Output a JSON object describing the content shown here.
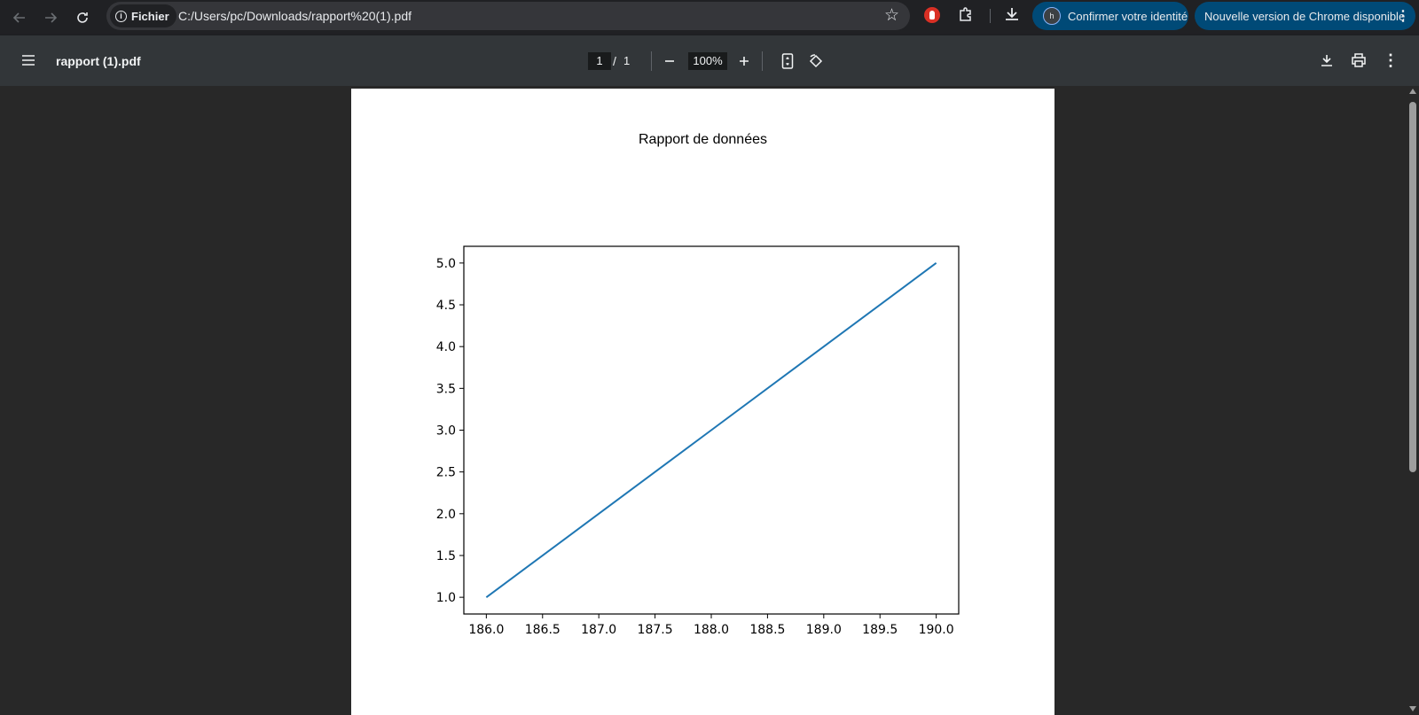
{
  "browser": {
    "site_chip_label": "Fichier",
    "url": "C:/Users/pc/Downloads/rapport%20(1).pdf",
    "identity_label": "Confirmer votre identité",
    "identity_avatar": "h",
    "update_label": "Nouvelle version de Chrome disponible",
    "icons": [
      "back-icon",
      "forward-icon",
      "reload-icon",
      "info-icon",
      "star-icon",
      "extension-red-icon",
      "puzzle-icon",
      "download-icon",
      "more-vert-icon"
    ]
  },
  "pdf_toolbar": {
    "title": "rapport (1).pdf",
    "current_page": "1",
    "page_separator": "/",
    "total_pages": "1",
    "zoom": "100%",
    "icons": [
      "menu-icon",
      "zoom-out-icon",
      "zoom-in-icon",
      "fit-page-icon",
      "rotate-icon",
      "download-icon",
      "print-icon",
      "more-vert-icon"
    ]
  },
  "document": {
    "title": "Rapport de données"
  },
  "chart_data": {
    "type": "line",
    "title": "",
    "xlabel": "",
    "ylabel": "",
    "x": [
      186,
      187,
      188,
      189,
      190
    ],
    "series": [
      {
        "values": [
          1,
          2,
          3,
          4,
          5
        ],
        "color": "#1f77b4"
      }
    ],
    "xlim": [
      185.8,
      190.2
    ],
    "ylim": [
      0.8,
      5.2
    ],
    "xticks": [
      "186.0",
      "186.5",
      "187.0",
      "187.5",
      "188.0",
      "188.5",
      "189.0",
      "189.5",
      "190.0"
    ],
    "xtick_values": [
      186.0,
      186.5,
      187.0,
      187.5,
      188.0,
      188.5,
      189.0,
      189.5,
      190.0
    ],
    "yticks": [
      "1.0",
      "1.5",
      "2.0",
      "2.5",
      "3.0",
      "3.5",
      "4.0",
      "4.5",
      "5.0"
    ],
    "ytick_values": [
      1.0,
      1.5,
      2.0,
      2.5,
      3.0,
      3.5,
      4.0,
      4.5,
      5.0
    ],
    "grid": false,
    "legend": "none"
  }
}
